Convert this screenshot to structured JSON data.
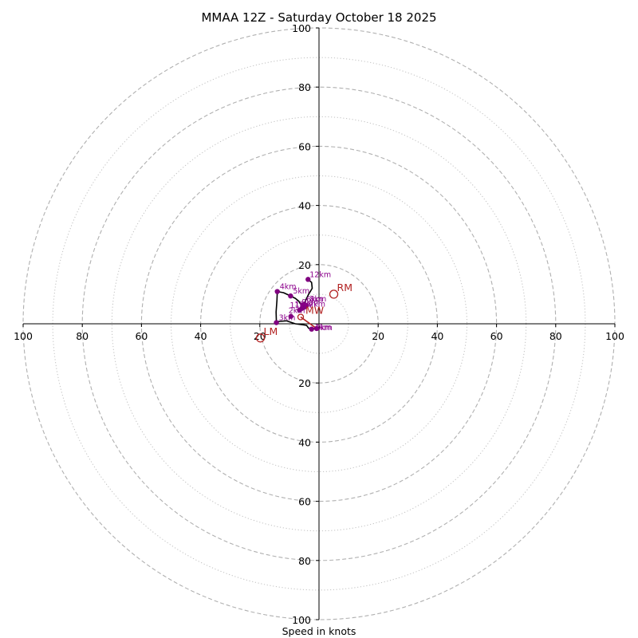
{
  "chart_data": {
    "type": "scatter",
    "subtype": "hodograph",
    "title": "MMAA 12Z - Saturday October 18 2025",
    "xlabel": "Speed in knots",
    "ylabel": "",
    "range": [
      0,
      100
    ],
    "rings_major": [
      20,
      40,
      60,
      80,
      100
    ],
    "rings_minor": [
      10,
      30,
      50,
      70,
      90
    ],
    "tick_values": [
      "20",
      "40",
      "60",
      "80",
      "100"
    ],
    "units": "kt",
    "trace": [
      [
        -0.5,
        -1.8
      ],
      [
        -1.0,
        -1.6
      ],
      [
        -2.5,
        -1.6
      ],
      [
        -3.5,
        -1.5
      ],
      [
        -4.2,
        -0.5
      ],
      [
        -8.0,
        0.0
      ],
      [
        -11.0,
        1.0
      ],
      [
        -13.5,
        0.8
      ],
      [
        -14.4,
        0.4
      ],
      [
        -14.5,
        4.0
      ],
      [
        -14.2,
        8.0
      ],
      [
        -14.1,
        10.9
      ],
      [
        -12.0,
        10.5
      ],
      [
        -9.6,
        9.4
      ],
      [
        -8.0,
        8.6
      ],
      [
        -6.8,
        7.6
      ],
      [
        -6.5,
        7.0
      ],
      [
        -5.2,
        6.5
      ],
      [
        -3.5,
        10.0
      ],
      [
        -2.3,
        12.0
      ],
      [
        -2.5,
        14.0
      ],
      [
        -3.7,
        15.0
      ]
    ],
    "height_markers": [
      {
        "label": "0km",
        "u": -0.8,
        "v": -1.6
      },
      {
        "label": "1km",
        "u": -2.5,
        "v": -1.8
      },
      {
        "label": "2km",
        "u": -9.5,
        "v": 2.5
      },
      {
        "label": "3km",
        "u": -14.4,
        "v": 0.4
      },
      {
        "label": "4km",
        "u": -14.1,
        "v": 10.9
      },
      {
        "label": "5km",
        "u": -9.6,
        "v": 9.4
      },
      {
        "label": "6km",
        "u": -5.4,
        "v": 6.4
      },
      {
        "label": "7km",
        "u": -4.8,
        "v": 5.8
      },
      {
        "label": "8km",
        "u": -4.2,
        "v": 6.2
      },
      {
        "label": "9km",
        "u": -5.0,
        "v": 5.6
      },
      {
        "label": "10km",
        "u": -5.8,
        "v": 5.2
      },
      {
        "label": "11km",
        "u": -6.6,
        "v": 4.6
      },
      {
        "label": "12km",
        "u": -3.7,
        "v": 15.0
      }
    ],
    "motions": [
      {
        "label": "RM",
        "u": 5.0,
        "v": 10.0
      },
      {
        "label": "LM",
        "u": -19.8,
        "v": -4.8
      },
      {
        "label": "MW",
        "u": -6.2,
        "v": 2.3
      }
    ],
    "mean_wind_vector": [
      [
        -0.8,
        -1.6
      ],
      [
        -6.2,
        2.3
      ]
    ],
    "colors": {
      "trace": "#000000",
      "height_markers": "#800080",
      "motion": "#b22222",
      "rings": "#b0b0b0"
    }
  }
}
